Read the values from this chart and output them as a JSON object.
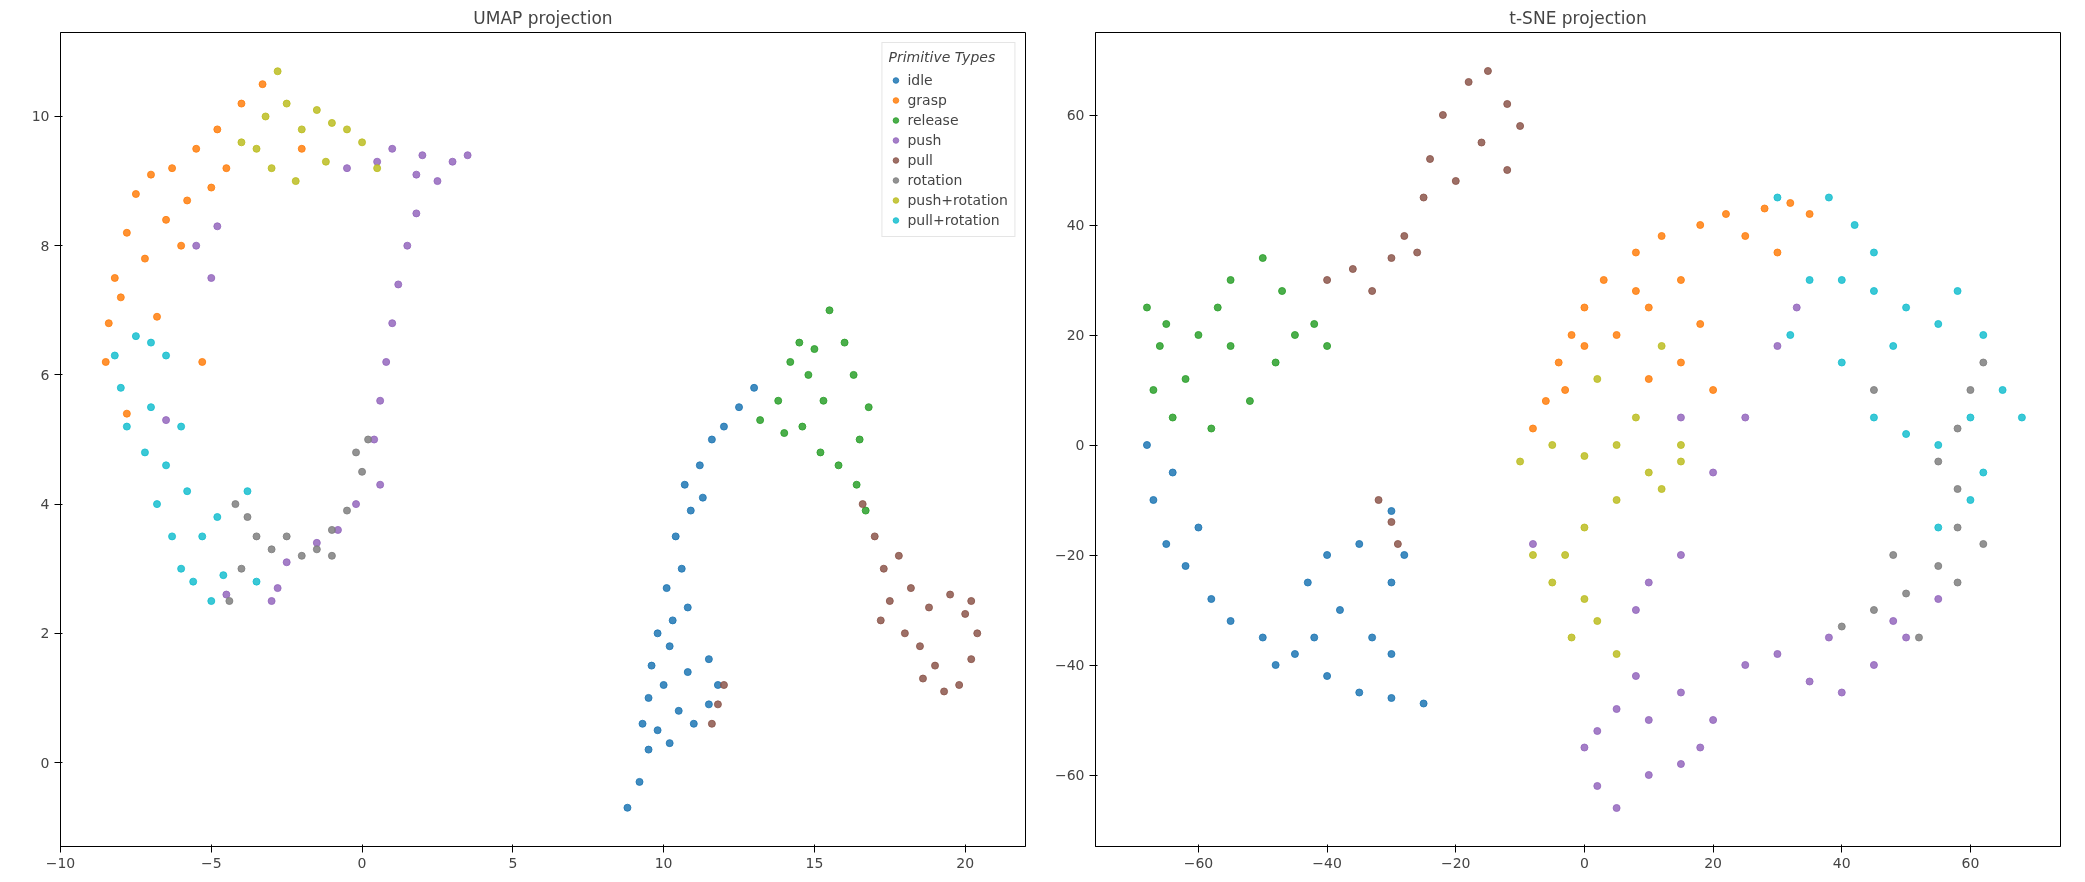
{
  "chart_data": [
    {
      "type": "scatter",
      "title": "UMAP projection",
      "legend_title": "Primitive Types",
      "legend": "top right",
      "grid": false,
      "marker": "circle",
      "xlim": [
        -10,
        22
      ],
      "ylim": [
        -1.3,
        11.3
      ],
      "xticks": [
        -10,
        -5,
        0,
        5,
        10,
        15,
        20
      ],
      "yticks": [
        0,
        2,
        4,
        6,
        8,
        10
      ],
      "series": [
        {
          "name": "idle",
          "color": "#1f77b4",
          "x": [
            8.8,
            9.2,
            9.5,
            9.3,
            9.8,
            10.2,
            10.5,
            11,
            11.5,
            11.8,
            11.5,
            10.8,
            10,
            9.6,
            9.8,
            10.3,
            10.1,
            10.6,
            10.4,
            10.9,
            10.7,
            11.2,
            11.6,
            12,
            12.5,
            13,
            11.3,
            10.2,
            9.5,
            10.8
          ],
          "values": [
            -0.7,
            -0.3,
            0.2,
            0.6,
            0.5,
            0.3,
            0.8,
            0.6,
            0.9,
            1.2,
            1.6,
            1.4,
            1.2,
            1.5,
            2,
            2.2,
            2.7,
            3,
            3.5,
            3.9,
            4.3,
            4.6,
            5,
            5.2,
            5.5,
            5.8,
            4.1,
            1.8,
            1.0,
            2.4
          ]
        },
        {
          "name": "grasp",
          "color": "#ff7f0e",
          "x": [
            -8.5,
            -8.4,
            -8.2,
            -7.8,
            -7.5,
            -7,
            -6.3,
            -5.5,
            -4.8,
            -4,
            -3.3,
            -7.2,
            -6.5,
            -5.8,
            -6.8,
            -5.3,
            -7.8,
            -8,
            -6,
            -4.5,
            -2,
            -5
          ],
          "values": [
            6.2,
            6.8,
            7.5,
            8.2,
            8.8,
            9.1,
            9.2,
            9.5,
            9.8,
            10.2,
            10.5,
            7.8,
            8.4,
            8.7,
            6.9,
            6.2,
            5.4,
            7.2,
            8.0,
            9.2,
            9.5,
            8.9
          ]
        },
        {
          "name": "release",
          "color": "#2ca02c",
          "x": [
            13.2,
            13.8,
            14.2,
            14.5,
            15,
            15.5,
            16,
            16.3,
            16.8,
            16.5,
            15.8,
            15.2,
            14.6,
            14,
            15.3,
            16.4,
            16.7,
            14.8
          ],
          "values": [
            5.3,
            5.6,
            6.2,
            6.5,
            6.4,
            7,
            6.5,
            6,
            5.5,
            5,
            4.6,
            4.8,
            5.2,
            5.1,
            5.6,
            4.3,
            3.9,
            6.0
          ]
        },
        {
          "name": "push",
          "color": "#9467bd",
          "x": [
            0.5,
            1,
            2,
            3,
            3.5,
            2.5,
            1.8,
            1.5,
            1.2,
            1,
            0.8,
            0.6,
            0.4,
            0.6,
            -0.2,
            -0.8,
            -1.5,
            -2.5,
            -2.8,
            -4.5,
            -3,
            -5.5,
            -5,
            -4.8,
            -6.5,
            1.8,
            -0.5
          ],
          "values": [
            9.3,
            9.5,
            9.4,
            9.3,
            9.4,
            9,
            8.5,
            8,
            7.4,
            6.8,
            6.2,
            5.6,
            5.0,
            4.3,
            4,
            3.6,
            3.4,
            3.1,
            2.7,
            2.6,
            2.5,
            8.0,
            7.5,
            8.3,
            5.3,
            9.1,
            9.2
          ]
        },
        {
          "name": "pull",
          "color": "#8c564b",
          "x": [
            16.6,
            17,
            17.3,
            17.5,
            17.2,
            18,
            18.5,
            19,
            19.3,
            19.8,
            20.2,
            20.4,
            20.2,
            19.5,
            18.8,
            18.2,
            17.8,
            12,
            11.8,
            11.6,
            20,
            18.6
          ],
          "values": [
            4.0,
            3.5,
            3.0,
            2.5,
            2.2,
            2.0,
            1.8,
            1.5,
            1.1,
            1.2,
            1.6,
            2.0,
            2.5,
            2.6,
            2.4,
            2.7,
            3.2,
            1.2,
            0.9,
            0.6,
            2.3,
            1.3
          ]
        },
        {
          "name": "rotation",
          "color": "#7f7f7f",
          "x": [
            -4.4,
            -4,
            -3.5,
            -3,
            -2.5,
            -2,
            -1.5,
            -1,
            -0.5,
            0,
            0.2,
            -0.2,
            -4.2,
            -3.8,
            -1
          ],
          "values": [
            2.5,
            3.0,
            3.5,
            3.3,
            3.5,
            3.2,
            3.3,
            3.6,
            3.9,
            4.5,
            5,
            4.8,
            4.0,
            3.8,
            3.2
          ]
        },
        {
          "name": "push+rotation",
          "color": "#bcbd22",
          "x": [
            -3.5,
            -2.8,
            -2.5,
            -2,
            -1.5,
            -1,
            -0.5,
            0,
            0.5,
            -3,
            -2.2,
            -1.2,
            -4,
            -3.2
          ],
          "values": [
            9.5,
            10.7,
            10.2,
            9.8,
            10.1,
            9.9,
            9.8,
            9.6,
            9.2,
            9.2,
            9.0,
            9.3,
            9.6,
            10.0
          ]
        },
        {
          "name": "pull+rotation",
          "color": "#17becf",
          "x": [
            -8.2,
            -7.5,
            -7,
            -8,
            -7.8,
            -7.2,
            -7,
            -6.5,
            -6.8,
            -6.3,
            -6,
            -5.6,
            -5,
            -4.6,
            -5.3,
            -5.8,
            -4.8,
            -3.5,
            -3.8,
            -6,
            -6.5
          ],
          "values": [
            6.3,
            6.6,
            6.5,
            5.8,
            5.2,
            4.8,
            5.5,
            4.6,
            4.0,
            3.5,
            3.0,
            2.8,
            2.5,
            2.9,
            3.5,
            4.2,
            3.8,
            2.8,
            4.2,
            5.2,
            6.3
          ]
        }
      ]
    },
    {
      "type": "scatter",
      "title": "t-SNE projection",
      "grid": false,
      "marker": "circle",
      "xlim": [
        -76,
        74
      ],
      "ylim": [
        -73,
        75
      ],
      "xticks": [
        -60,
        -40,
        -20,
        0,
        20,
        40,
        60
      ],
      "yticks": [
        -60,
        -40,
        -20,
        0,
        20,
        40,
        60
      ],
      "series": [
        {
          "color": "#1f77b4",
          "x": [
            -68,
            -67,
            -65,
            -62,
            -58,
            -55,
            -50,
            -45,
            -40,
            -35,
            -30,
            -25,
            -33,
            -30,
            -28,
            -35,
            -40,
            -43,
            -38,
            -30,
            -60,
            -64,
            -48,
            -42,
            -30
          ],
          "values": [
            0,
            -10,
            -18,
            -22,
            -28,
            -32,
            -35,
            -38,
            -42,
            -45,
            -46,
            -47,
            -35,
            -25,
            -20,
            -18,
            -20,
            -25,
            -30,
            -12,
            -15,
            -5,
            -40,
            -35,
            -38
          ]
        },
        {
          "color": "#ff7f0e",
          "x": [
            -8,
            -6,
            -4,
            -2,
            0,
            3,
            8,
            12,
            18,
            22,
            28,
            32,
            35,
            25,
            15,
            10,
            5,
            0,
            -3,
            10,
            15,
            20,
            8,
            30,
            18
          ],
          "values": [
            3,
            8,
            15,
            20,
            25,
            30,
            35,
            38,
            40,
            42,
            43,
            44,
            42,
            38,
            30,
            25,
            20,
            18,
            10,
            12,
            15,
            10,
            28,
            35,
            22
          ]
        },
        {
          "color": "#2ca02c",
          "x": [
            -68,
            -66,
            -67,
            -64,
            -62,
            -60,
            -57,
            -55,
            -50,
            -47,
            -45,
            -42,
            -40,
            -48,
            -52,
            -58,
            -55,
            -65
          ],
          "values": [
            25,
            18,
            10,
            5,
            12,
            20,
            25,
            30,
            34,
            28,
            20,
            22,
            18,
            15,
            8,
            3,
            18,
            22
          ]
        },
        {
          "color": "#9467bd",
          "x": [
            0,
            2,
            5,
            10,
            15,
            18,
            20,
            15,
            8,
            5,
            10,
            25,
            30,
            35,
            40,
            45,
            50,
            55,
            48,
            10,
            15,
            8,
            20,
            30,
            33,
            25,
            15,
            -8,
            2,
            38
          ],
          "values": [
            -55,
            -62,
            -66,
            -60,
            -58,
            -55,
            -50,
            -45,
            -42,
            -48,
            -50,
            -40,
            -38,
            -43,
            -45,
            -40,
            -35,
            -28,
            -32,
            -25,
            -20,
            -30,
            -5,
            18,
            25,
            5,
            5,
            -18,
            -52,
            -35
          ]
        },
        {
          "color": "#8c564b",
          "x": [
            -40,
            -36,
            -33,
            -30,
            -28,
            -25,
            -24,
            -22,
            -18,
            -15,
            -12,
            -10,
            -12,
            -16,
            -20,
            -26,
            -32,
            -30,
            -29
          ],
          "values": [
            30,
            32,
            28,
            34,
            38,
            45,
            52,
            60,
            66,
            68,
            62,
            58,
            50,
            55,
            48,
            35,
            -10,
            -14,
            -18
          ]
        },
        {
          "color": "#7f7f7f",
          "x": [
            40,
            45,
            50,
            55,
            58,
            58,
            62,
            58,
            52,
            55,
            58,
            60,
            62,
            45,
            48
          ],
          "values": [
            -33,
            -30,
            -27,
            -22,
            -15,
            -8,
            -18,
            -25,
            -35,
            -3,
            3,
            10,
            15,
            10,
            -20
          ]
        },
        {
          "color": "#bcbd22",
          "x": [
            -10,
            -5,
            0,
            5,
            10,
            15,
            12,
            5,
            0,
            -3,
            -5,
            0,
            2,
            5,
            -2,
            -8,
            8,
            2,
            12,
            15
          ],
          "values": [
            -3,
            0,
            -2,
            0,
            -5,
            -3,
            -8,
            -10,
            -15,
            -20,
            -25,
            -28,
            -32,
            -38,
            -35,
            -20,
            5,
            12,
            18,
            0
          ]
        },
        {
          "color": "#17becf",
          "x": [
            30,
            38,
            42,
            40,
            45,
            50,
            55,
            58,
            62,
            65,
            68,
            60,
            55,
            50,
            45,
            40,
            35,
            32,
            48,
            60,
            55,
            62,
            45
          ],
          "values": [
            45,
            45,
            40,
            30,
            28,
            25,
            22,
            28,
            20,
            10,
            5,
            5,
            0,
            2,
            5,
            15,
            30,
            20,
            18,
            -10,
            -15,
            -5,
            35
          ]
        }
      ]
    }
  ]
}
